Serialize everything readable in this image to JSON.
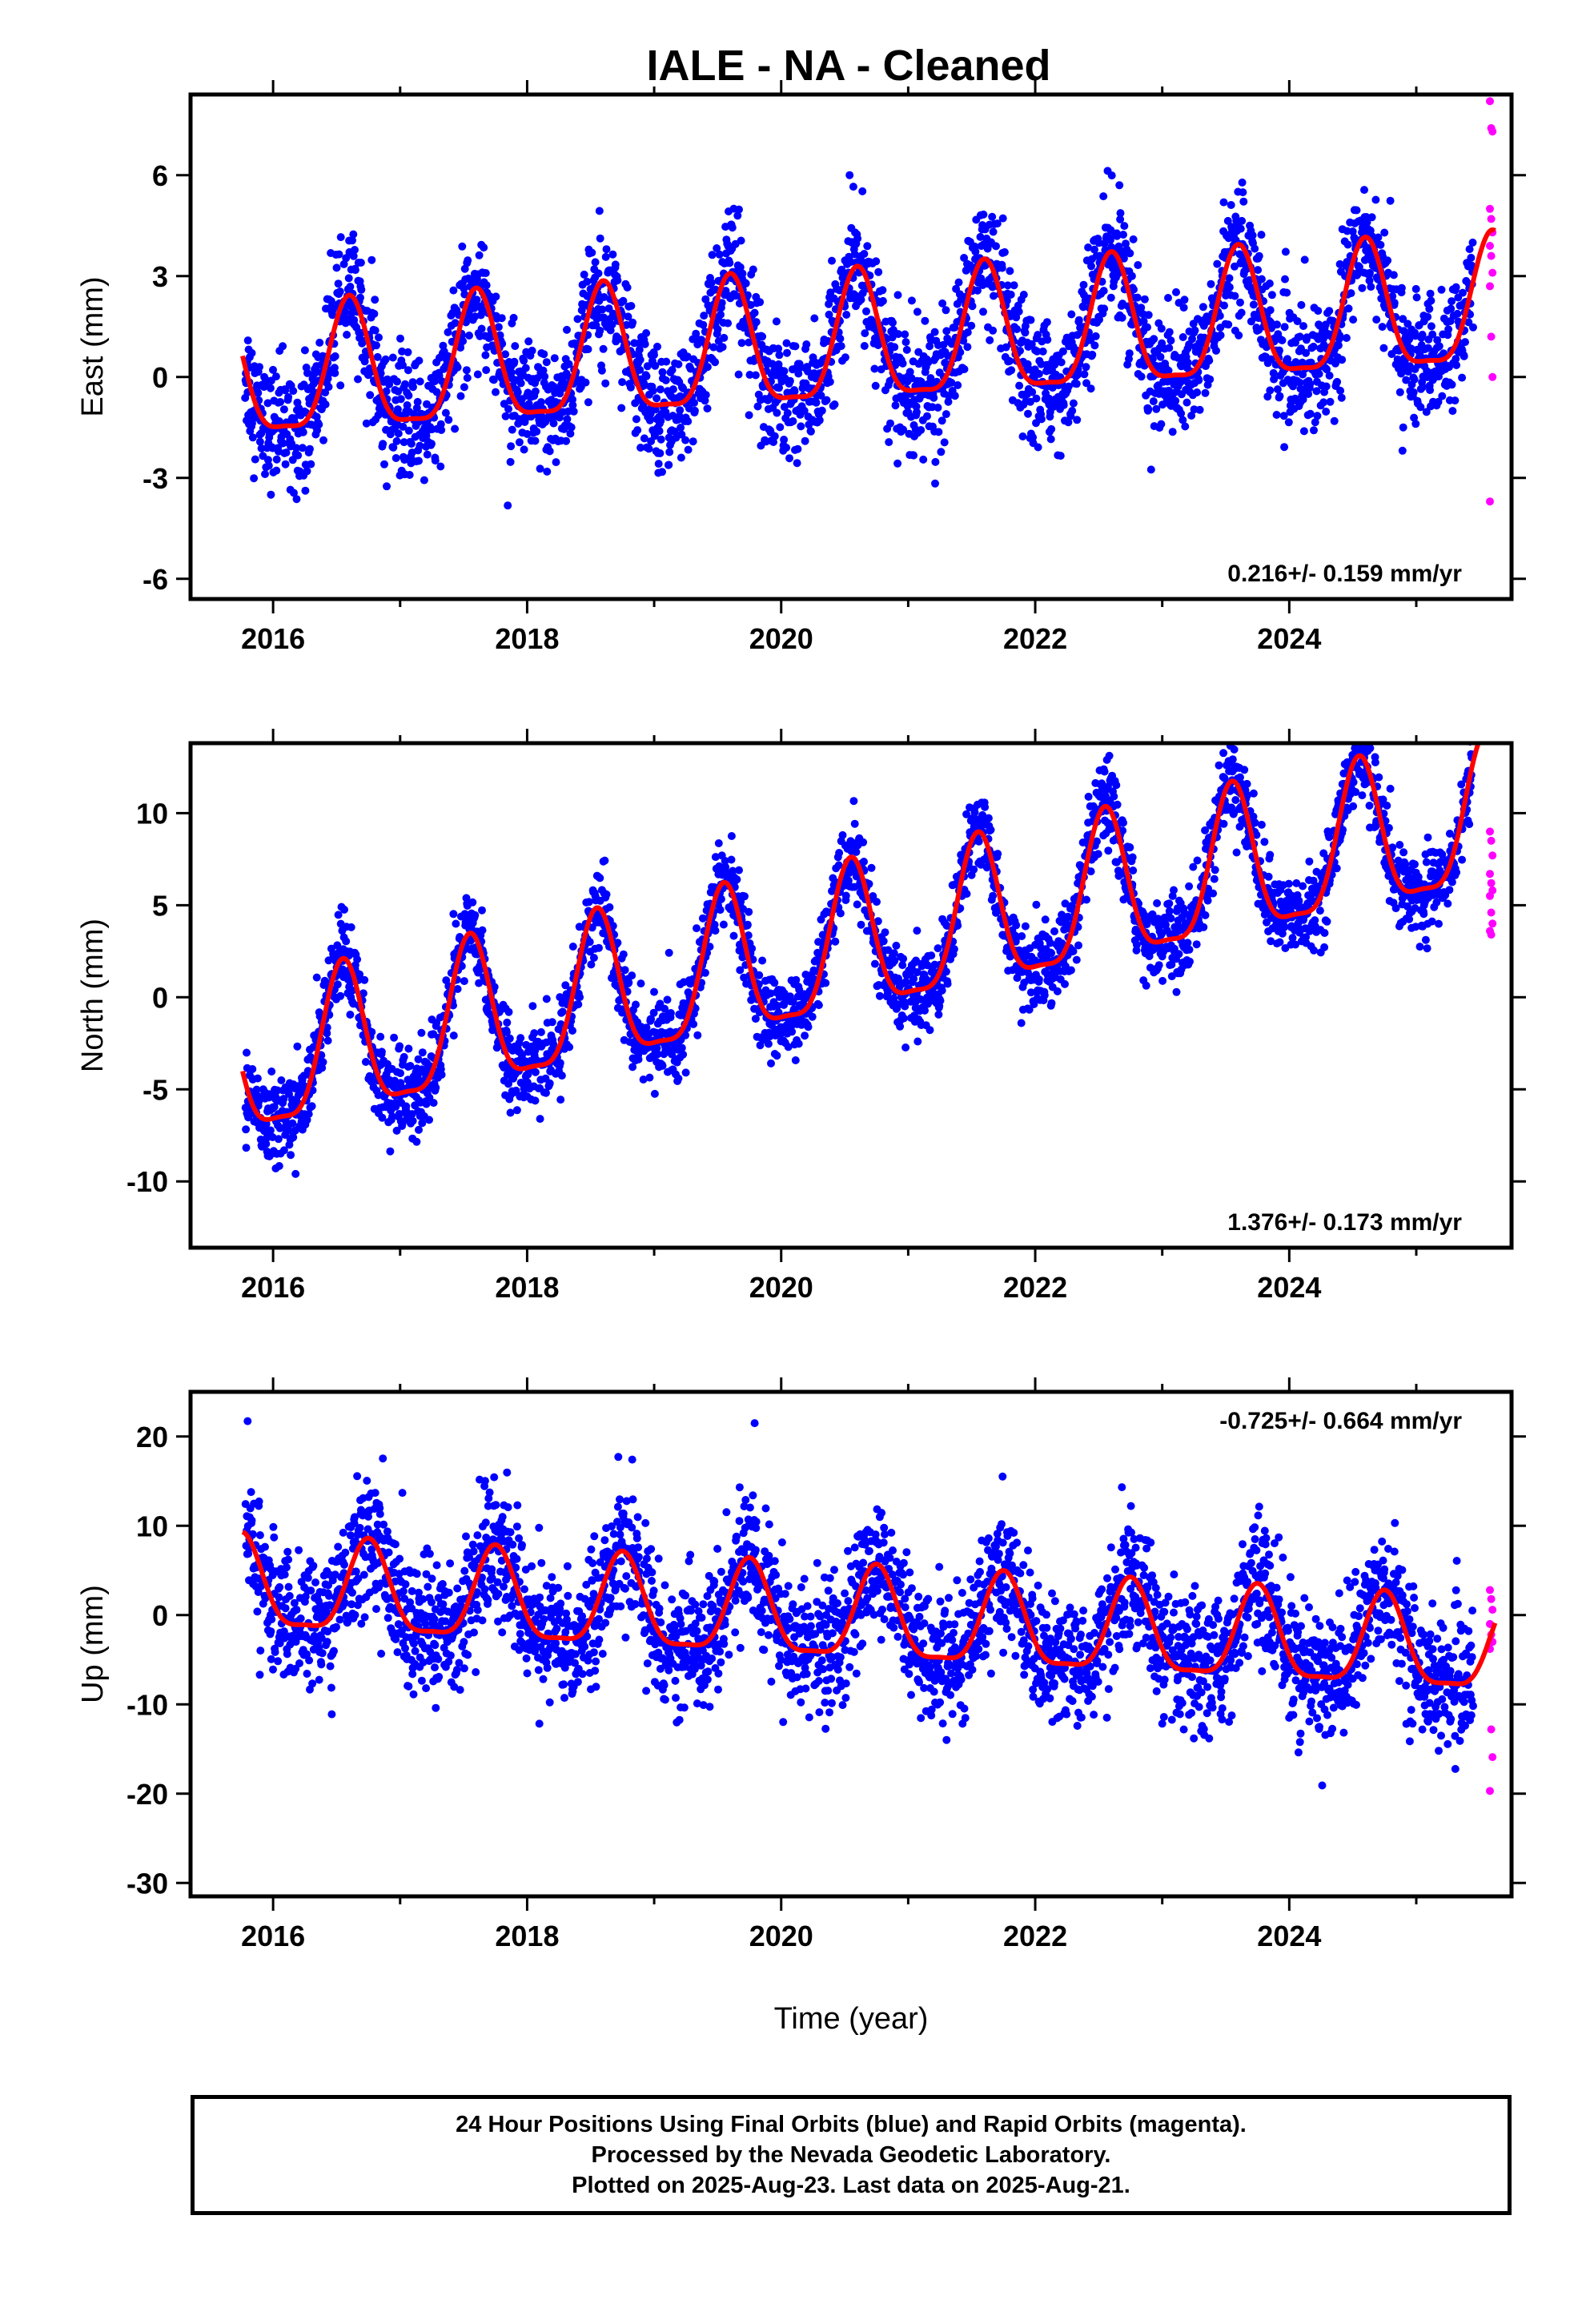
{
  "chart_data": {
    "type": "scatter",
    "title": "IALE  - NA - Cleaned",
    "xlabel": "Time (year)",
    "colors": {
      "final": "#0000ff",
      "rapid": "#ff00ff",
      "model": "#ff0000"
    },
    "legend": "bottom box",
    "panels": [
      {
        "ylabel": "East (mm)",
        "xlim": [
          2015.35,
          2025.75
        ],
        "ylim": [
          -6.6,
          8.4
        ],
        "yticks": [
          -6,
          -3,
          0,
          3,
          6
        ],
        "yticklabels": [
          "-6",
          "-3",
          "0",
          "3",
          "6"
        ],
        "xticks": [
          2016,
          2018,
          2020,
          2022,
          2024
        ],
        "xticklabels": [
          "2016",
          "2018",
          "2020",
          "2022",
          "2024"
        ],
        "rate": "0.216+/- 0.159 mm/yr",
        "rate_value": 0.216,
        "amplitude": 2.1,
        "annual_peak_phase": 0.6,
        "noise": 0.9,
        "offset": -0.25,
        "rapid_values": [
          8.2,
          7.4,
          7.3,
          5.0,
          4.7,
          4.3,
          3.9,
          3.6,
          3.1,
          2.7,
          1.2,
          0.0,
          -3.7
        ]
      },
      {
        "ylabel": "North (mm)",
        "xlim": [
          2015.35,
          2025.75
        ],
        "ylim": [
          -13.6,
          13.8
        ],
        "yticks": [
          -10,
          -5,
          0,
          5,
          10
        ],
        "yticklabels": [
          "-10",
          "-5",
          "0",
          "5",
          "10"
        ],
        "xticks": [
          2016,
          2018,
          2020,
          2022,
          2024
        ],
        "xticklabels": [
          "2016",
          "2018",
          "2020",
          "2022",
          "2024"
        ],
        "rate": "1.376+/- 0.173 mm/yr",
        "rate_value": 1.376,
        "amplitude": 4.4,
        "annual_peak_phase": 0.55,
        "noise": 1.1,
        "offset": -4.6,
        "rapid_values": [
          9.0,
          8.5,
          7.7,
          6.7,
          6.2,
          5.8,
          5.5,
          4.6,
          4.0,
          3.6,
          3.4
        ]
      },
      {
        "ylabel": "Up (mm)",
        "xlim": [
          2015.35,
          2025.75
        ],
        "ylim": [
          -31.5,
          25.0
        ],
        "yticks": [
          -30,
          -20,
          -10,
          0,
          10,
          20
        ],
        "yticklabels": [
          "-30",
          "-20",
          "-10",
          "0",
          "10",
          "20"
        ],
        "xticks": [
          2016,
          2018,
          2020,
          2022,
          2024
        ],
        "xticklabels": [
          "2016",
          "2018",
          "2020",
          "2022",
          "2024"
        ],
        "rate": "-0.725+/- 0.664 mm/yr",
        "rate_value": -0.725,
        "amplitude": 5.6,
        "annual_peak_phase": 0.75,
        "noise": 3.6,
        "offset": 3.2,
        "rapid_values": [
          2.8,
          1.8,
          0.6,
          -1.0,
          -2.2,
          -3.0,
          -3.8,
          -12.8,
          -15.9,
          -19.7
        ]
      }
    ]
  },
  "footer": {
    "line1": "24 Hour Positions Using Final Orbits (blue) and Rapid Orbits (magenta).",
    "line2": "Processed by the Nevada Geodetic Laboratory.",
    "line3": "Plotted on 2025-Aug-23. Last data on 2025-Aug-21."
  }
}
